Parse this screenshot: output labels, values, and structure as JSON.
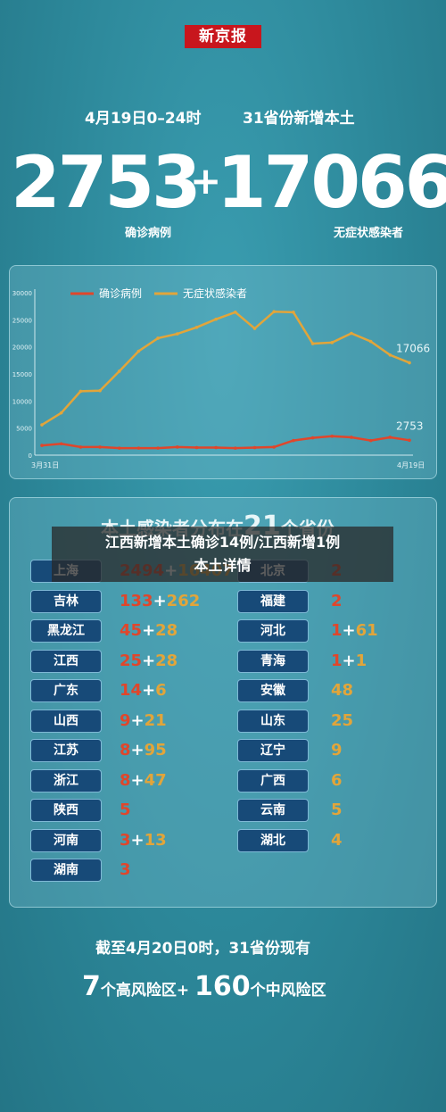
{
  "header": {
    "logo": "新京报",
    "date_range": "4月19日0–24时",
    "provinces_new": "31省份新增本土",
    "confirmed": "2753",
    "asymptomatic": "17066",
    "plus": "+",
    "confirmed_label": "确诊病例",
    "asymptomatic_label": "无症状感染者"
  },
  "chart_data": {
    "type": "line",
    "x_start_label": "3月31日",
    "x_end_label": "4月19日",
    "yticks": [
      0,
      5000,
      10000,
      15000,
      20000,
      25000,
      30000
    ],
    "ytick_labels": [
      "0",
      "5000",
      "10000",
      "15000",
      "20000",
      "25000",
      "30000"
    ],
    "ylim": [
      0,
      30000
    ],
    "series": [
      {
        "name": "确诊病例",
        "color": "#e0462b",
        "values": [
          1800,
          2100,
          1500,
          1500,
          1300,
          1300,
          1300,
          1500,
          1400,
          1400,
          1300,
          1400,
          1500,
          2700,
          3200,
          3500,
          3300,
          2700,
          3300,
          2753
        ],
        "end_label": "2753"
      },
      {
        "name": "无症状感染者",
        "color": "#e2a53a",
        "values": [
          5600,
          7800,
          11800,
          11900,
          15500,
          19200,
          21600,
          22400,
          23600,
          25100,
          26400,
          23400,
          26500,
          26400,
          20600,
          20800,
          22500,
          21000,
          18500,
          17066
        ],
        "end_label": "17066"
      }
    ],
    "grid": false,
    "legend": "top-left"
  },
  "distribution": {
    "title_pre": "本土感染者分布在",
    "count": "21",
    "title_post": "个省份",
    "left": [
      {
        "name": "上海",
        "c": "2494",
        "a": "16407"
      },
      {
        "name": "吉林",
        "c": "133",
        "a": "262"
      },
      {
        "name": "黑龙江",
        "c": "45",
        "a": "28"
      },
      {
        "name": "江西",
        "c": "25",
        "a": "28"
      },
      {
        "name": "广东",
        "c": "14",
        "a": "6"
      },
      {
        "name": "山西",
        "c": "9",
        "a": "21"
      },
      {
        "name": "江苏",
        "c": "8",
        "a": "95"
      },
      {
        "name": "浙江",
        "c": "8",
        "a": "47"
      },
      {
        "name": "陕西",
        "c": "5",
        "a": ""
      },
      {
        "name": "河南",
        "c": "3",
        "a": "13"
      },
      {
        "name": "湖南",
        "c": "3",
        "a": ""
      }
    ],
    "right": [
      {
        "name": "北京",
        "c": "2",
        "a": ""
      },
      {
        "name": "福建",
        "c": "2",
        "a": ""
      },
      {
        "name": "河北",
        "c": "1",
        "a": "61"
      },
      {
        "name": "青海",
        "c": "1",
        "a": "1"
      },
      {
        "name": "安徽",
        "c": "",
        "a": "48"
      },
      {
        "name": "山东",
        "c": "",
        "a": "25"
      },
      {
        "name": "辽宁",
        "c": "",
        "a": "9"
      },
      {
        "name": "广西",
        "c": "",
        "a": "6"
      },
      {
        "name": "云南",
        "c": "",
        "a": "5"
      },
      {
        "name": "湖北",
        "c": "",
        "a": "4"
      }
    ]
  },
  "overlay": {
    "line1": "江西新增本土确诊14例/江西新增1例",
    "line2": "本土详情"
  },
  "footer": {
    "line1": "截至4月20日0时，31省份现有",
    "high_count": "7",
    "high_label": "个高风险区+",
    "mid_count": "160",
    "mid_label": "个中风险区"
  }
}
